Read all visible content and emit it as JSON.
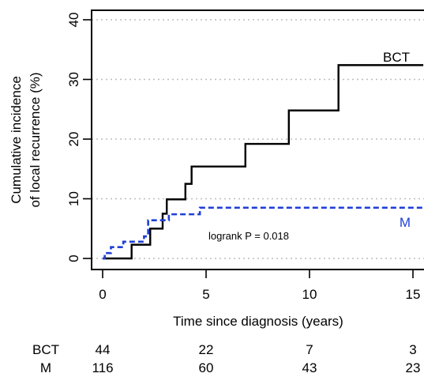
{
  "chart_data": {
    "type": "line",
    "step": true,
    "ylabel_lines": [
      "Cumulative incidence",
      "of local recurrence (%)"
    ],
    "xlabel": "Time since diagnosis (years)",
    "xlim": [
      0,
      15.5
    ],
    "ylim": [
      0,
      42
    ],
    "xticks": [
      0,
      5,
      10,
      15
    ],
    "yticks": [
      0,
      10,
      20,
      30,
      40
    ],
    "grid": "horizontal-dotted",
    "annotation": "logrank P = 0.018",
    "series": [
      {
        "name": "BCT",
        "color": "#000000",
        "dash": "solid",
        "x": [
          0,
          1.4,
          2.3,
          2.9,
          3.1,
          4.0,
          4.3,
          6.9,
          9.0,
          11.4,
          15.5
        ],
        "y": [
          0,
          2.3,
          5.0,
          7.5,
          9.9,
          12.5,
          15.4,
          19.2,
          24.8,
          32.4,
          32.4
        ]
      },
      {
        "name": "M",
        "color": "#1f3fd6",
        "dash": "dashed",
        "x": [
          0,
          0.1,
          0.4,
          1.0,
          2.0,
          2.2,
          3.2,
          4.7,
          15.5
        ],
        "y": [
          0,
          0.9,
          1.9,
          2.8,
          3.7,
          6.4,
          7.4,
          8.5,
          8.5
        ]
      }
    ],
    "risk_table": {
      "times": [
        0,
        5,
        10,
        15
      ],
      "rows": [
        {
          "label": "BCT",
          "values": [
            "44",
            "22",
            "7",
            "3"
          ]
        },
        {
          "label": "M",
          "values": [
            "116",
            "60",
            "43",
            "23"
          ]
        }
      ]
    }
  }
}
